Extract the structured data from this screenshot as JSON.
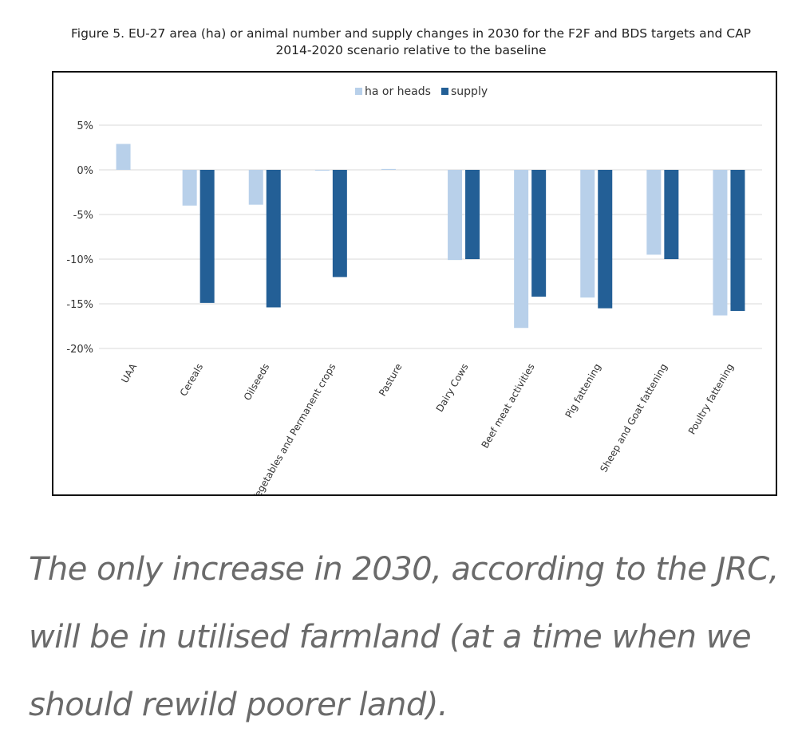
{
  "chart_data": {
    "type": "bar",
    "title": "Figure 5. EU-27 area (ha) or animal number and supply changes in 2030 for the F2F and BDS targets and CAP 2014-2020 scenario relative to the baseline",
    "title_line1": "Figure 5. EU-27 area (ha) or animal number and supply changes in 2030 for the F2F and BDS targets and CAP",
    "title_line2": "2014-2020 scenario relative to the baseline",
    "xlabel": "",
    "ylabel": "",
    "ylim": [
      -20,
      5
    ],
    "yticks": [
      5,
      0,
      -5,
      -10,
      -15,
      -20
    ],
    "ytick_labels": [
      "5%",
      "0%",
      "-5%",
      "-10%",
      "-15%",
      "-20%"
    ],
    "grid": true,
    "legend_position": "top-center",
    "categories": [
      "UAA",
      "Cereals",
      "Oilseeds",
      "Vegetables and Permanent crops",
      "Pasture",
      "Dairy Cows",
      "Beef meat activities",
      "Pig fattening",
      "Sheep and Goat fattening",
      "Poultry fattening"
    ],
    "series": [
      {
        "name": "ha or heads",
        "color": "#b8d0ea",
        "values": [
          2.9,
          -4.0,
          -3.9,
          0.0,
          0.1,
          -10.1,
          -17.7,
          -14.3,
          -9.5,
          -16.3
        ]
      },
      {
        "name": "supply",
        "color": "#235f96",
        "values": [
          null,
          -14.9,
          -15.4,
          -12.0,
          null,
          -10.0,
          -14.2,
          -15.5,
          -10.0,
          -15.8
        ]
      }
    ]
  },
  "caption": {
    "text": "The only increase in 2030, according to the JRC, will be in utilised farmland (at a time when we should rewild poorer land)."
  }
}
